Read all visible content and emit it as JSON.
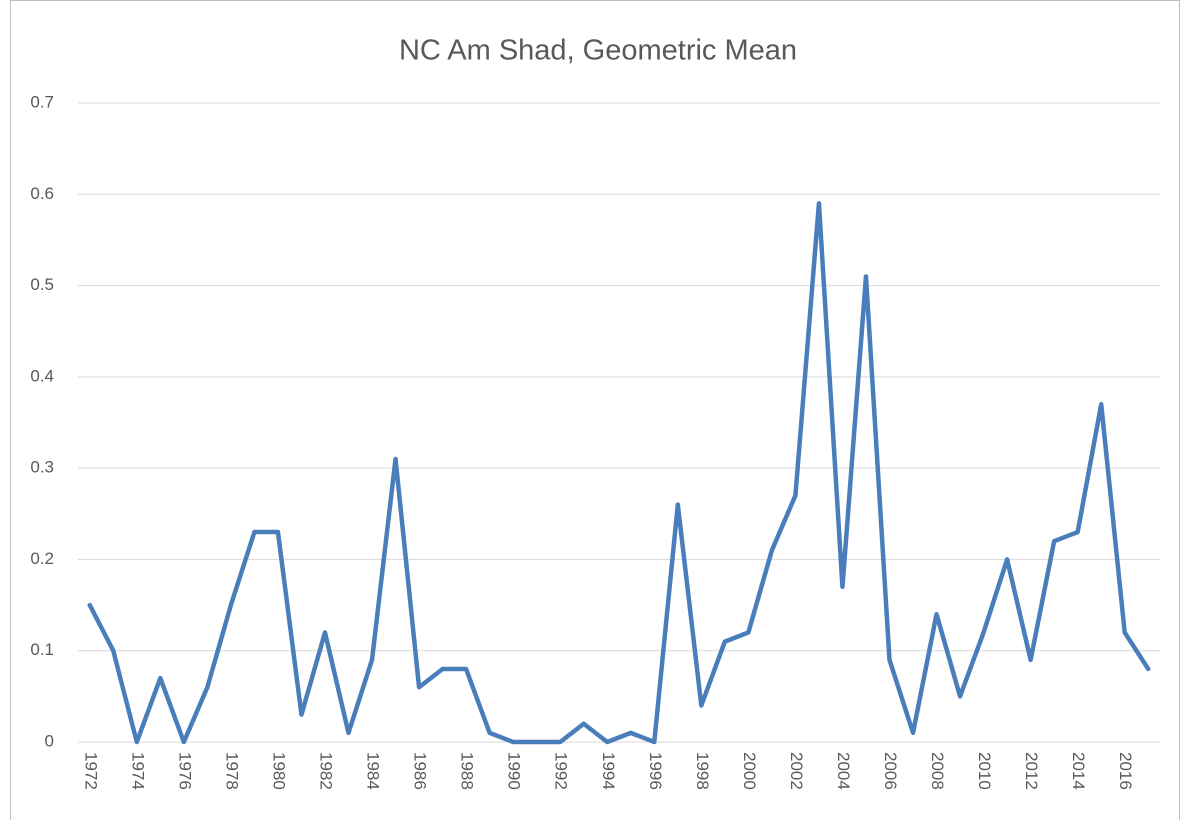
{
  "chart_data": {
    "type": "line",
    "title": "NC Am Shad, Geometric Mean",
    "categories": [
      "1972",
      null,
      "1974",
      null,
      "1976",
      null,
      "1978",
      null,
      "1980",
      null,
      "1982",
      null,
      "1984",
      null,
      "1986",
      null,
      "1988",
      null,
      "1990",
      null,
      "1992",
      null,
      "1994",
      null,
      "1996",
      null,
      "1998",
      null,
      "2000",
      null,
      "2002",
      null,
      "2004",
      null,
      "2006",
      null,
      "2008",
      null,
      "2010",
      null,
      "2012",
      null,
      "2014",
      null,
      "2016",
      null
    ],
    "values": [
      0.15,
      0.1,
      0.0,
      0.07,
      0.0,
      0.06,
      0.15,
      0.23,
      0.23,
      0.03,
      0.12,
      0.01,
      0.09,
      0.31,
      0.06,
      0.08,
      0.08,
      0.01,
      0.0,
      0.0,
      0.0,
      0.02,
      0.0,
      0.01,
      0.0,
      0.26,
      0.04,
      0.11,
      0.12,
      0.21,
      0.27,
      0.59,
      0.17,
      0.51,
      0.09,
      0.01,
      0.14,
      0.05,
      0.12,
      0.2,
      0.09,
      0.22,
      0.23,
      0.37,
      0.12,
      0.08
    ],
    "color": "#4a7ebb",
    "ylim": [
      0,
      0.7
    ],
    "yticks": [
      0,
      0.1,
      0.2,
      0.3,
      0.4,
      0.5,
      0.6,
      0.7
    ],
    "grid": true
  }
}
